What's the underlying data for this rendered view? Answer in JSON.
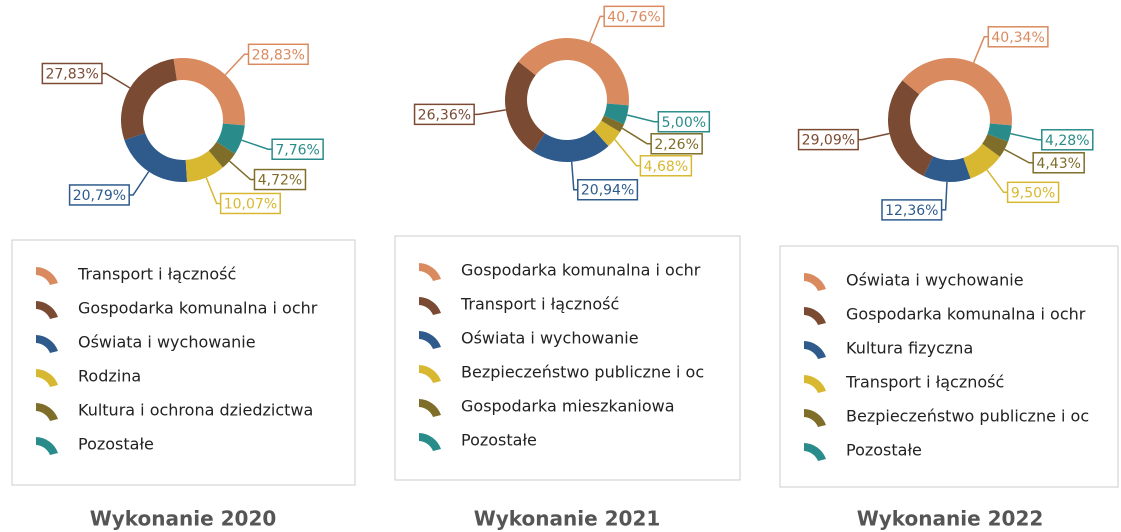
{
  "chart_data": [
    {
      "type": "pie",
      "title": "Wykonanie 2020",
      "categories": [
        "Transport i łączność",
        "Gospodarka komunalna i ochr",
        "Oświata i wychowanie",
        "Rodzina",
        "Kultura i ochrona dziedzictwa",
        "Pozostałe"
      ],
      "values": [
        28.83,
        27.83,
        20.79,
        10.07,
        4.72,
        7.76
      ],
      "value_labels": [
        "28,83%",
        "27,83%",
        "20,79%",
        "10,07%",
        "4,72%",
        "7,76%"
      ],
      "colors": [
        "#d98b5f",
        "#7b4a33",
        "#2e5b8c",
        "#d8b830",
        "#7f6d2a",
        "#2a8c8a"
      ]
    },
    {
      "type": "pie",
      "title": "Wykonanie 2021",
      "categories": [
        "Gospodarka komunalna i ochr",
        "Transport i łączność",
        "Oświata i wychowanie",
        "Bezpieczeństwo publiczne i oc",
        "Gospodarka mieszkaniowa",
        "Pozostałe"
      ],
      "values": [
        40.76,
        26.36,
        20.94,
        4.68,
        2.26,
        5.0
      ],
      "value_labels": [
        "40,76%",
        "26,36%",
        "20,94%",
        "4,68%",
        "2,26%",
        "5,00%"
      ],
      "colors": [
        "#d98b5f",
        "#7b4a33",
        "#2e5b8c",
        "#d8b830",
        "#7f6d2a",
        "#2a8c8a"
      ]
    },
    {
      "type": "pie",
      "title": "Wykonanie 2022",
      "categories": [
        "Oświata i wychowanie",
        "Gospodarka komunalna i ochr",
        "Kultura fizyczna",
        "Transport i łączność",
        "Bezpieczeństwo publiczne i oc",
        "Pozostałe"
      ],
      "values": [
        40.34,
        29.09,
        12.36,
        9.5,
        4.43,
        4.28
      ],
      "value_labels": [
        "40,34%",
        "29,09%",
        "12,36%",
        "9,50%",
        "4,43%",
        "4,28%"
      ],
      "colors": [
        "#d98b5f",
        "#7b4a33",
        "#2e5b8c",
        "#d8b830",
        "#7f6d2a",
        "#2a8c8a"
      ]
    }
  ]
}
